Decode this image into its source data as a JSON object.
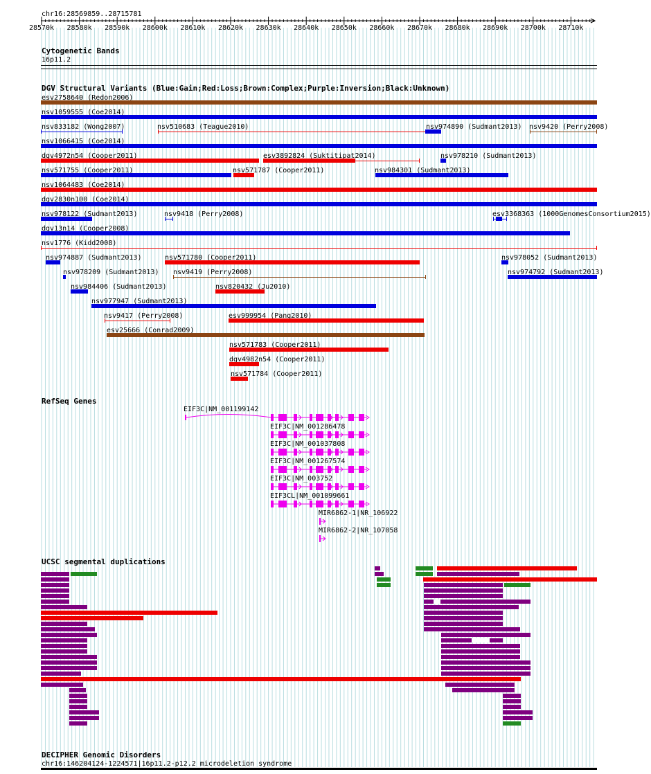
{
  "ruler": {
    "title": "chr16:28569859..28715781",
    "ticks": [
      "28570k",
      "28580k",
      "28590k",
      "28600k",
      "28610k",
      "28620k",
      "28630k",
      "28640k",
      "28650k",
      "28660k",
      "28670k",
      "28680k",
      "28690k",
      "28700k",
      "28710k"
    ]
  },
  "tracks": {
    "cyto": {
      "title": "Cytogenetic Bands",
      "band": "16p11.2"
    },
    "dgv": {
      "title": "DGV Structural Variants (Blue:Gain;Red:Loss;Brown:Complex;Purple:Inversion;Black:Unknown)"
    },
    "refseq": {
      "title": "RefSeq Genes"
    },
    "segdup": {
      "title": "UCSC segmental duplications"
    },
    "decipher": {
      "title": "DECIPHER Genomic Disorders",
      "item": "chr16:146204124-1224571|16p11.2-p12.2 microdeletion syndrome"
    }
  },
  "colors": {
    "gain": "#0000dd",
    "loss": "#ee0000",
    "complex": "#8b4513",
    "gene": "#ee00ee",
    "segdup_purple": "#7f007f",
    "segdup_green": "#228b22",
    "segdup_red": "#ee0000",
    "grid": "#b8dde0"
  },
  "dgv_variants": [
    {
      "label": "esv2758640 (Redon2006)"
    },
    {
      "label": "nsv1059555 (Coe2014)"
    },
    {
      "label": "nsv833182 (Wong2007)"
    },
    {
      "label": "nsv510683 (Teague2010)"
    },
    {
      "label": "nsv974890 (Sudmant2013)"
    },
    {
      "label": "nsv9420 (Perry2008)"
    },
    {
      "label": "nsv1066415 (Coe2014)"
    },
    {
      "label": "dgv4972n54 (Cooper2011)"
    },
    {
      "label": "esv3892824 (Suktitipat2014)"
    },
    {
      "label": "nsv978210 (Sudmant2013)"
    },
    {
      "label": "nsv571755 (Cooper2011)"
    },
    {
      "label": "nsv571787 (Cooper2011)"
    },
    {
      "label": "nsv984301 (Sudmant2013)"
    },
    {
      "label": "nsv1064483 (Coe2014)"
    },
    {
      "label": "dgv2830n100 (Coe2014)"
    },
    {
      "label": "nsv978122 (Sudmant2013)"
    },
    {
      "label": "nsv9418 (Perry2008)"
    },
    {
      "label": "esv3368363 (1000GenomesConsortium2015)"
    },
    {
      "label": "dgv13n14 (Cooper2008)"
    },
    {
      "label": "nsv1776 (Kidd2008)"
    },
    {
      "label": "nsv974887 (Sudmant2013)"
    },
    {
      "label": "nsv571780 (Cooper2011)"
    },
    {
      "label": "nsv978052 (Sudmant2013)"
    },
    {
      "label": "nsv978209 (Sudmant2013)"
    },
    {
      "label": "nsv9419 (Perry2008)"
    },
    {
      "label": "nsv974792 (Sudmant2013)"
    },
    {
      "label": "nsv984406 (Sudmant2013)"
    },
    {
      "label": "nsv820432 (Ju2010)"
    },
    {
      "label": "nsv977947 (Sudmant2013)"
    },
    {
      "label": "nsv9417 (Perry2008)"
    },
    {
      "label": "esv999954 (Pang2010)"
    },
    {
      "label": "esv25666 (Conrad2009)"
    },
    {
      "label": "nsv571783 (Cooper2011)"
    },
    {
      "label": "dgv4982n54 (Cooper2011)"
    },
    {
      "label": "nsv571784 (Cooper2011)"
    }
  ],
  "genes": [
    {
      "label": "EIF3C|NM_001199142"
    },
    {
      "label": "EIF3C|NM_001286478"
    },
    {
      "label": "EIF3C|NM_001037808"
    },
    {
      "label": "EIF3C|NM_001267574"
    },
    {
      "label": "EIF3C|NM_003752"
    },
    {
      "label": "EIF3CL|NM_001099661"
    },
    {
      "label": "MIR6862-1|NR_106922"
    },
    {
      "label": "MIR6862-2|NR_107058"
    }
  ]
}
